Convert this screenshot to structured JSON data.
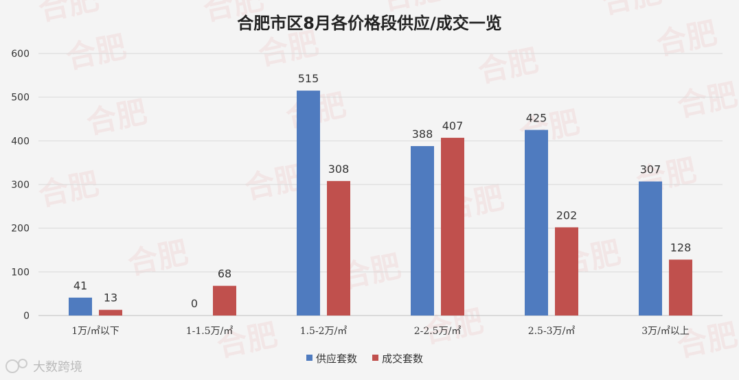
{
  "chart_data": {
    "type": "bar",
    "title": "合肥市区8月各价格段供应/成交一览",
    "categories": [
      "1万/㎡以下",
      "1-1.5万/㎡",
      "1.5-2万/㎡",
      "2-2.5万/㎡",
      "2.5-3万/㎡",
      "3万/㎡以上"
    ],
    "series": [
      {
        "name": "供应套数",
        "values": [
          41,
          0,
          515,
          388,
          425,
          307
        ],
        "color": "#4f7bbf"
      },
      {
        "name": "成交套数",
        "values": [
          13,
          68,
          308,
          407,
          202,
          128
        ],
        "color": "#c0504d"
      }
    ],
    "ylim": [
      0,
      600
    ],
    "yticks": [
      "0",
      "100",
      "200",
      "300",
      "400",
      "500",
      "600"
    ],
    "grid": true,
    "legend_position": "bottom-center"
  },
  "branding": {
    "watermark_text": "合肥",
    "source_label": "大数跨境"
  }
}
